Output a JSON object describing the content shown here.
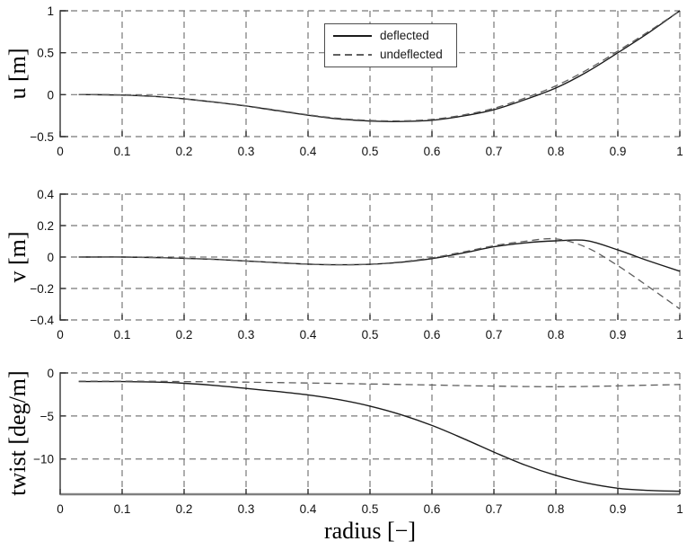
{
  "figure": {
    "background": "#ffffff",
    "axis_color": "#333333",
    "grid_color": "#787878",
    "solid_line_color": "#1c1c1c",
    "dashed_line_color": "#5e5e5e",
    "baseline_color": "#808080"
  },
  "legend": {
    "position": "top-center of first subplot",
    "entries": [
      {
        "label": "deflected",
        "style": "solid"
      },
      {
        "label": "undeflected",
        "style": "dashed"
      }
    ]
  },
  "chart_data": [
    {
      "id": "u",
      "type": "line",
      "ylabel": "u [m]",
      "xlabel": "",
      "grid": true,
      "xlim": [
        0,
        1
      ],
      "ylim": [
        -0.5,
        1
      ],
      "xtick_values": [
        0,
        0.1,
        0.2,
        0.3,
        0.4,
        0.5,
        0.6,
        0.7,
        0.8,
        0.9,
        1
      ],
      "xtick_labels": [
        "0",
        "0.1",
        "0.2",
        "0.3",
        "0.4",
        "0.5",
        "0.6",
        "0.7",
        "0.8",
        "0.9",
        "1"
      ],
      "ytick_values": [
        -0.5,
        0,
        0.5,
        1
      ],
      "ytick_labels": [
        "−0.5",
        "0",
        "0.5",
        "1"
      ],
      "x": [
        0.03,
        0.05,
        0.1,
        0.15,
        0.2,
        0.25,
        0.3,
        0.35,
        0.4,
        0.45,
        0.5,
        0.55,
        0.6,
        0.65,
        0.7,
        0.75,
        0.8,
        0.85,
        0.9,
        0.95,
        1
      ],
      "series": [
        {
          "name": "deflected",
          "style": "solid",
          "values": [
            0,
            0,
            -0.005,
            -0.02,
            -0.05,
            -0.09,
            -0.135,
            -0.19,
            -0.245,
            -0.29,
            -0.315,
            -0.32,
            -0.305,
            -0.255,
            -0.18,
            -0.06,
            0.08,
            0.27,
            0.5,
            0.74,
            1
          ]
        },
        {
          "name": "undeflected",
          "style": "dashed",
          "values": [
            0,
            0,
            -0.005,
            -0.02,
            -0.05,
            -0.088,
            -0.132,
            -0.185,
            -0.24,
            -0.283,
            -0.307,
            -0.312,
            -0.295,
            -0.243,
            -0.162,
            -0.04,
            0.105,
            0.295,
            0.52,
            0.755,
            1
          ]
        }
      ]
    },
    {
      "id": "v",
      "type": "line",
      "ylabel": "v [m]",
      "xlabel": "",
      "grid": true,
      "xlim": [
        0,
        1
      ],
      "ylim": [
        -0.4,
        0.4
      ],
      "xtick_values": [
        0,
        0.1,
        0.2,
        0.3,
        0.4,
        0.5,
        0.6,
        0.7,
        0.8,
        0.9,
        1
      ],
      "xtick_labels": [
        "0",
        "0.1",
        "0.2",
        "0.3",
        "0.4",
        "0.5",
        "0.6",
        "0.7",
        "0.8",
        "0.9",
        "1"
      ],
      "ytick_values": [
        -0.4,
        -0.2,
        0,
        0.2,
        0.4
      ],
      "ytick_labels": [
        "−0.4",
        "−0.2",
        "0",
        "0.2",
        "0.4"
      ],
      "x": [
        0.03,
        0.05,
        0.1,
        0.15,
        0.2,
        0.25,
        0.3,
        0.35,
        0.4,
        0.45,
        0.5,
        0.55,
        0.6,
        0.65,
        0.7,
        0.75,
        0.8,
        0.85,
        0.9,
        0.95,
        1
      ],
      "series": [
        {
          "name": "deflected",
          "style": "solid",
          "values": [
            0,
            0,
            0,
            -0.003,
            -0.008,
            -0.015,
            -0.025,
            -0.036,
            -0.045,
            -0.049,
            -0.046,
            -0.033,
            -0.01,
            0.025,
            0.065,
            0.09,
            0.103,
            0.104,
            0.045,
            -0.025,
            -0.09
          ]
        },
        {
          "name": "undeflected",
          "style": "dashed",
          "values": [
            0,
            0,
            0,
            -0.003,
            -0.008,
            -0.015,
            -0.025,
            -0.036,
            -0.045,
            -0.049,
            -0.046,
            -0.031,
            -0.005,
            0.032,
            0.072,
            0.1,
            0.115,
            0.06,
            -0.055,
            -0.19,
            -0.33
          ]
        }
      ]
    },
    {
      "id": "twist",
      "type": "line",
      "ylabel": "twist [deg/m]",
      "xlabel": "radius [−]",
      "grid": true,
      "xlim": [
        0,
        1
      ],
      "ylim": [
        -14.1,
        0
      ],
      "xtick_values": [
        0,
        0.1,
        0.2,
        0.3,
        0.4,
        0.5,
        0.6,
        0.7,
        0.8,
        0.9,
        1
      ],
      "xtick_labels": [
        "0",
        "0.1",
        "0.2",
        "0.3",
        "0.4",
        "0.5",
        "0.6",
        "0.7",
        "0.8",
        "0.9",
        "1"
      ],
      "ytick_values": [
        -10,
        -5,
        0
      ],
      "ytick_labels": [
        "−10",
        "−5",
        "0"
      ],
      "x": [
        0.03,
        0.05,
        0.1,
        0.15,
        0.2,
        0.25,
        0.3,
        0.35,
        0.4,
        0.45,
        0.5,
        0.55,
        0.6,
        0.65,
        0.7,
        0.75,
        0.8,
        0.85,
        0.9,
        0.95,
        1
      ],
      "series": [
        {
          "name": "deflected",
          "style": "solid",
          "values": [
            -1,
            -1,
            -1,
            -1.05,
            -1.2,
            -1.45,
            -1.8,
            -2.15,
            -2.55,
            -3.1,
            -3.85,
            -4.85,
            -6.1,
            -7.6,
            -9.2,
            -10.7,
            -11.9,
            -12.8,
            -13.4,
            -13.65,
            -13.75
          ]
        },
        {
          "name": "undeflected",
          "style": "dashed",
          "values": [
            -0.95,
            -0.95,
            -0.95,
            -0.97,
            -1,
            -1.03,
            -1.07,
            -1.12,
            -1.17,
            -1.22,
            -1.28,
            -1.34,
            -1.4,
            -1.47,
            -1.53,
            -1.58,
            -1.6,
            -1.57,
            -1.5,
            -1.42,
            -1.35
          ]
        }
      ]
    }
  ]
}
